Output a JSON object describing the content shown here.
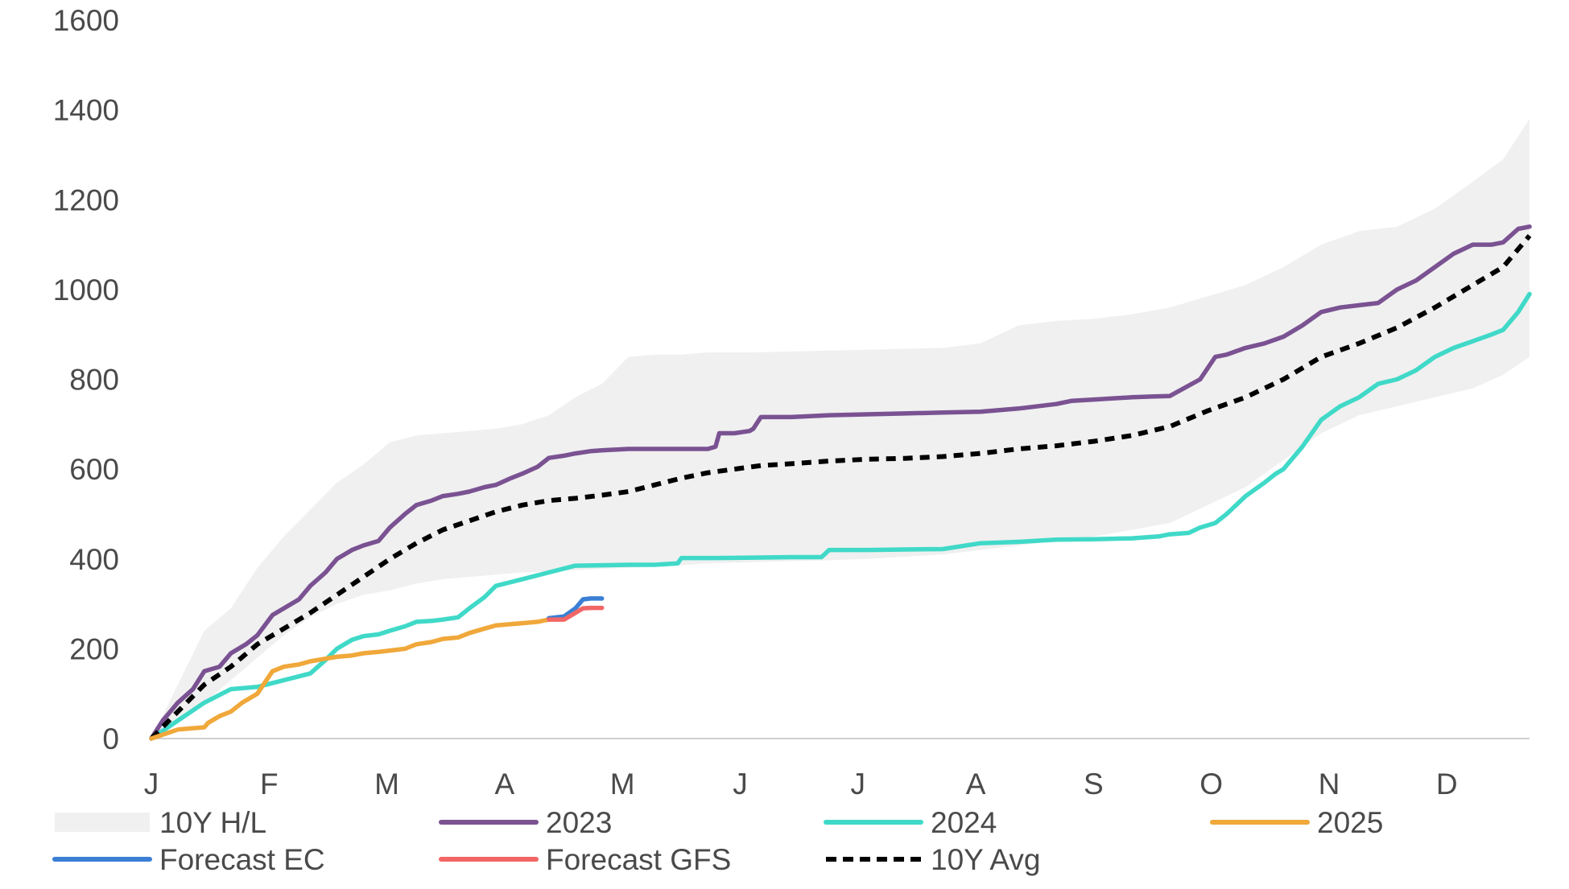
{
  "chart_data": {
    "type": "line",
    "title": "",
    "xlabel": "",
    "ylabel": "",
    "ylim": [
      0,
      1600
    ],
    "yticks": [
      0,
      200,
      400,
      600,
      800,
      1000,
      1200,
      1400,
      1600
    ],
    "x_unit": "day_of_year",
    "xlim": [
      1,
      365
    ],
    "month_labels": [
      "J",
      "F",
      "M",
      "A",
      "M",
      "J",
      "J",
      "A",
      "S",
      "O",
      "N",
      "D"
    ],
    "grid": false,
    "legend_position": "bottom",
    "band": {
      "name": "10Y H/L",
      "color": "#f0f0f0",
      "x": [
        1,
        8,
        15,
        22,
        29,
        36,
        43,
        50,
        57,
        64,
        71,
        78,
        85,
        92,
        99,
        106,
        113,
        120,
        127,
        134,
        141,
        148,
        155,
        160,
        170,
        180,
        190,
        200,
        210,
        220,
        230,
        240,
        250,
        260,
        270,
        280,
        290,
        300,
        310,
        320,
        330,
        340,
        350,
        358,
        365
      ],
      "high": [
        0,
        120,
        240,
        290,
        380,
        450,
        510,
        570,
        610,
        660,
        675,
        680,
        685,
        690,
        700,
        720,
        760,
        790,
        850,
        855,
        855,
        860,
        860,
        860,
        862,
        864,
        866,
        868,
        870,
        880,
        920,
        930,
        935,
        945,
        960,
        985,
        1010,
        1050,
        1100,
        1130,
        1140,
        1180,
        1240,
        1290,
        1380
      ],
      "low": [
        0,
        40,
        80,
        130,
        180,
        230,
        270,
        300,
        320,
        330,
        345,
        355,
        360,
        365,
        370,
        372,
        375,
        378,
        380,
        382,
        386,
        390,
        392,
        393,
        395,
        397,
        400,
        405,
        410,
        420,
        430,
        440,
        450,
        465,
        480,
        520,
        560,
        620,
        680,
        720,
        740,
        760,
        780,
        810,
        850
      ]
    },
    "series": [
      {
        "name": "2023",
        "color": "#7a5292",
        "style": "solid",
        "x": [
          1,
          4,
          8,
          12,
          15,
          19,
          22,
          26,
          29,
          33,
          36,
          40,
          43,
          47,
          50,
          54,
          57,
          61,
          64,
          68,
          71,
          75,
          78,
          82,
          85,
          89,
          92,
          96,
          99,
          103,
          106,
          110,
          113,
          117,
          120,
          127,
          134,
          141,
          148,
          150,
          151,
          155,
          159,
          160,
          162,
          170,
          175,
          180,
          190,
          200,
          210,
          220,
          230,
          240,
          244,
          250,
          256,
          260,
          266,
          270,
          278,
          282,
          285,
          290,
          295,
          300,
          305,
          310,
          315,
          320,
          325,
          330,
          335,
          340,
          345,
          350,
          355,
          358,
          362,
          365
        ],
        "values": [
          0,
          40,
          80,
          110,
          150,
          160,
          190,
          210,
          230,
          275,
          290,
          310,
          340,
          370,
          400,
          420,
          430,
          440,
          470,
          500,
          520,
          530,
          540,
          545,
          550,
          560,
          565,
          580,
          590,
          605,
          625,
          630,
          635,
          640,
          642,
          645,
          645,
          645,
          645,
          650,
          680,
          680,
          685,
          690,
          716,
          716,
          718,
          720,
          722,
          724,
          726,
          728,
          735,
          745,
          752,
          755,
          758,
          760,
          762,
          763,
          800,
          850,
          855,
          870,
          880,
          895,
          920,
          950,
          960,
          965,
          970,
          1000,
          1020,
          1050,
          1080,
          1100,
          1100,
          1105,
          1135,
          1140
        ]
      },
      {
        "name": "2024",
        "color": "#40d9c8",
        "style": "solid",
        "x": [
          1,
          8,
          15,
          22,
          29,
          36,
          43,
          47,
          50,
          54,
          57,
          61,
          64,
          68,
          71,
          75,
          78,
          82,
          85,
          89,
          92,
          99,
          106,
          113,
          120,
          127,
          134,
          140,
          141,
          150,
          160,
          170,
          178,
          180,
          190,
          200,
          210,
          220,
          230,
          240,
          250,
          260,
          267,
          270,
          275,
          278,
          282,
          285,
          290,
          295,
          298,
          300,
          305,
          310,
          315,
          320,
          325,
          330,
          335,
          340,
          345,
          350,
          355,
          358,
          362,
          365
        ],
        "values": [
          0,
          40,
          80,
          110,
          115,
          130,
          145,
          175,
          200,
          220,
          228,
          232,
          240,
          250,
          260,
          262,
          265,
          270,
          290,
          315,
          340,
          355,
          370,
          385,
          386,
          387,
          387,
          390,
          402,
          402,
          403,
          404,
          404,
          420,
          420,
          421,
          422,
          435,
          438,
          443,
          444,
          446,
          450,
          455,
          458,
          470,
          480,
          500,
          540,
          570,
          590,
          600,
          650,
          710,
          740,
          760,
          790,
          800,
          820,
          850,
          870,
          885,
          900,
          910,
          950,
          990
        ]
      },
      {
        "name": "2025",
        "color": "#f0a83a",
        "style": "solid",
        "x": [
          1,
          8,
          15,
          16,
          19,
          22,
          25,
          29,
          31,
          33,
          36,
          40,
          43,
          47,
          50,
          54,
          57,
          61,
          64,
          68,
          71,
          75,
          78,
          82,
          85,
          89,
          92,
          96,
          99,
          103,
          106,
          110
        ],
        "values": [
          0,
          20,
          25,
          35,
          50,
          60,
          80,
          100,
          125,
          150,
          160,
          165,
          172,
          178,
          182,
          185,
          190,
          193,
          196,
          200,
          210,
          215,
          222,
          225,
          235,
          245,
          252,
          255,
          257,
          260,
          265,
          268
        ]
      },
      {
        "name": "Forecast EC",
        "color": "#3a7fd4",
        "style": "solid",
        "x": [
          106,
          110,
          113,
          115,
          117,
          120
        ],
        "values": [
          268,
          272,
          290,
          310,
          312,
          312
        ]
      },
      {
        "name": "Forecast GFS",
        "color": "#f26666",
        "style": "solid",
        "x": [
          106,
          110,
          113,
          115,
          117,
          120
        ],
        "values": [
          265,
          265,
          280,
          290,
          291,
          291
        ]
      },
      {
        "name": "10Y Avg",
        "color": "#000000",
        "style": "dashed",
        "x": [
          1,
          8,
          15,
          22,
          29,
          36,
          43,
          50,
          57,
          64,
          71,
          78,
          85,
          92,
          99,
          106,
          113,
          120,
          127,
          134,
          141,
          148,
          155,
          162,
          170,
          180,
          190,
          200,
          210,
          220,
          230,
          240,
          250,
          260,
          270,
          280,
          290,
          300,
          310,
          320,
          330,
          340,
          350,
          358,
          365
        ],
        "values": [
          0,
          60,
          120,
          160,
          210,
          245,
          280,
          320,
          360,
          400,
          435,
          465,
          485,
          505,
          520,
          530,
          535,
          542,
          550,
          565,
          580,
          592,
          600,
          608,
          612,
          618,
          622,
          624,
          628,
          635,
          645,
          652,
          662,
          675,
          695,
          730,
          760,
          800,
          850,
          880,
          915,
          960,
          1010,
          1050,
          1120
        ]
      }
    ]
  },
  "legend": [
    {
      "label": "10Y H/L",
      "kind": "band",
      "color": "#f0f0f0"
    },
    {
      "label": "2023",
      "kind": "line",
      "color": "#7a5292"
    },
    {
      "label": "2024",
      "kind": "line",
      "color": "#40d9c8"
    },
    {
      "label": "2025",
      "kind": "line",
      "color": "#f0a83a"
    },
    {
      "label": "Forecast EC",
      "kind": "line",
      "color": "#3a7fd4"
    },
    {
      "label": "Forecast GFS",
      "kind": "line",
      "color": "#f26666"
    },
    {
      "label": "10Y Avg",
      "kind": "dashed",
      "color": "#000000"
    }
  ]
}
